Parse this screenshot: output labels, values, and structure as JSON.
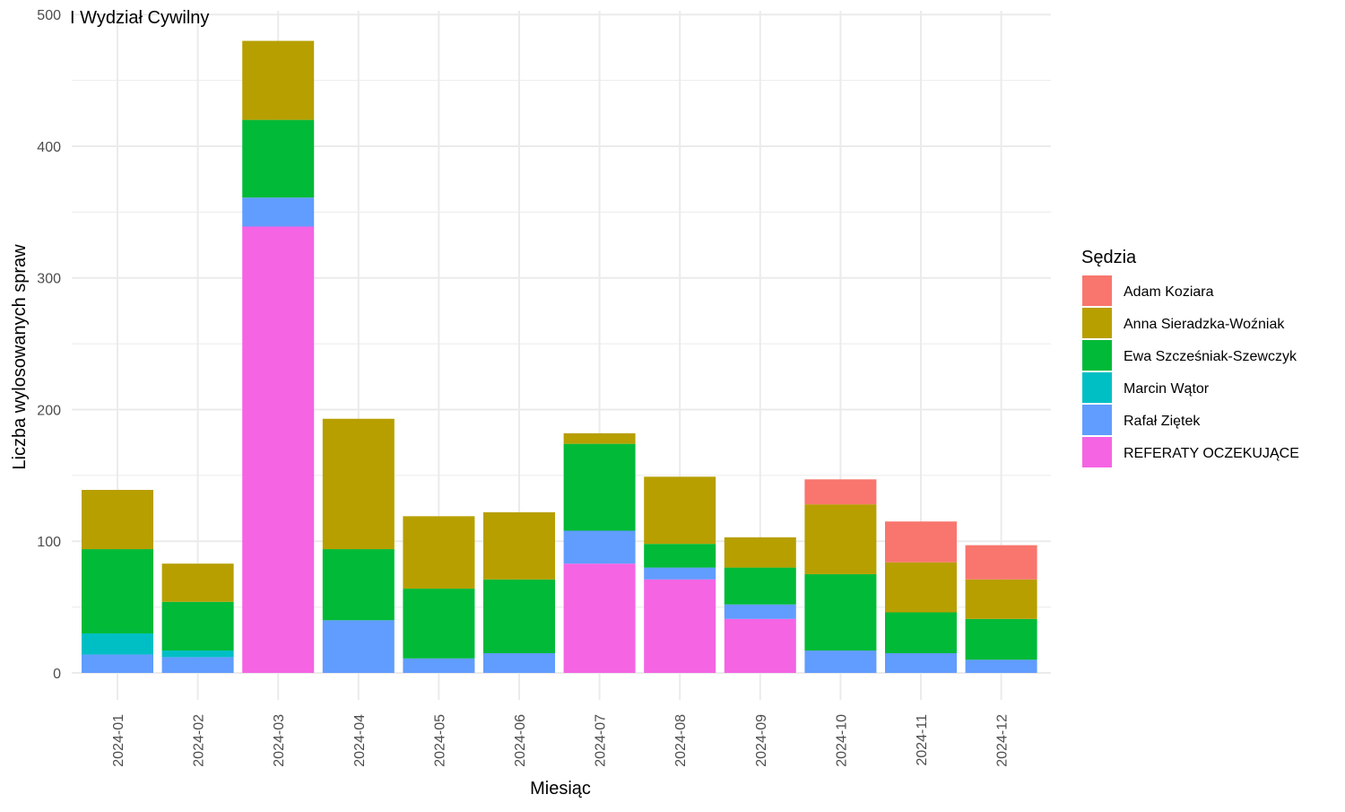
{
  "chart_data": {
    "type": "bar",
    "stacked": true,
    "title": "I Wydział Cywilny",
    "xlabel": "Miesiąc",
    "ylabel": "Liczba wylosowanych spraw",
    "ylim": [
      0,
      500
    ],
    "yticks": [
      0,
      100,
      200,
      300,
      400,
      500
    ],
    "grid": true,
    "legend_title": "Sędzia",
    "legend_position": "right",
    "categories": [
      "2024-01",
      "2024-02",
      "2024-03",
      "2024-04",
      "2024-05",
      "2024-06",
      "2024-07",
      "2024-08",
      "2024-09",
      "2024-10",
      "2024-11",
      "2024-12"
    ],
    "series": [
      {
        "name": "REFERATY OCZEKUJĄCE",
        "color": "#F564E3",
        "values": [
          0,
          0,
          339,
          0,
          0,
          0,
          83,
          71,
          41,
          0,
          0,
          0
        ]
      },
      {
        "name": "Rafał Ziętek",
        "color": "#619CFF",
        "values": [
          14,
          12,
          22,
          40,
          11,
          15,
          25,
          9,
          11,
          17,
          15,
          10
        ]
      },
      {
        "name": "Marcin Wątor",
        "color": "#00BFC4",
        "values": [
          16,
          5,
          0,
          0,
          0,
          0,
          0,
          0,
          0,
          0,
          0,
          0
        ]
      },
      {
        "name": "Ewa Szcześniak-Szewczyk",
        "color": "#00BA38",
        "values": [
          64,
          37,
          59,
          54,
          53,
          56,
          66,
          18,
          28,
          58,
          31,
          31
        ]
      },
      {
        "name": "Anna Sieradzka-Woźniak",
        "color": "#B79F00",
        "values": [
          45,
          29,
          60,
          99,
          55,
          51,
          8,
          51,
          23,
          53,
          38,
          30
        ]
      },
      {
        "name": "Adam Koziara",
        "color": "#F8766D",
        "values": [
          0,
          0,
          0,
          0,
          0,
          0,
          0,
          0,
          0,
          19,
          31,
          26
        ]
      }
    ],
    "legend_order": [
      "Adam Koziara",
      "Anna Sieradzka-Woźniak",
      "Ewa Szcześniak-Szewczyk",
      "Marcin Wątor",
      "Rafał Ziętek",
      "REFERATY OCZEKUJĄCE"
    ]
  }
}
